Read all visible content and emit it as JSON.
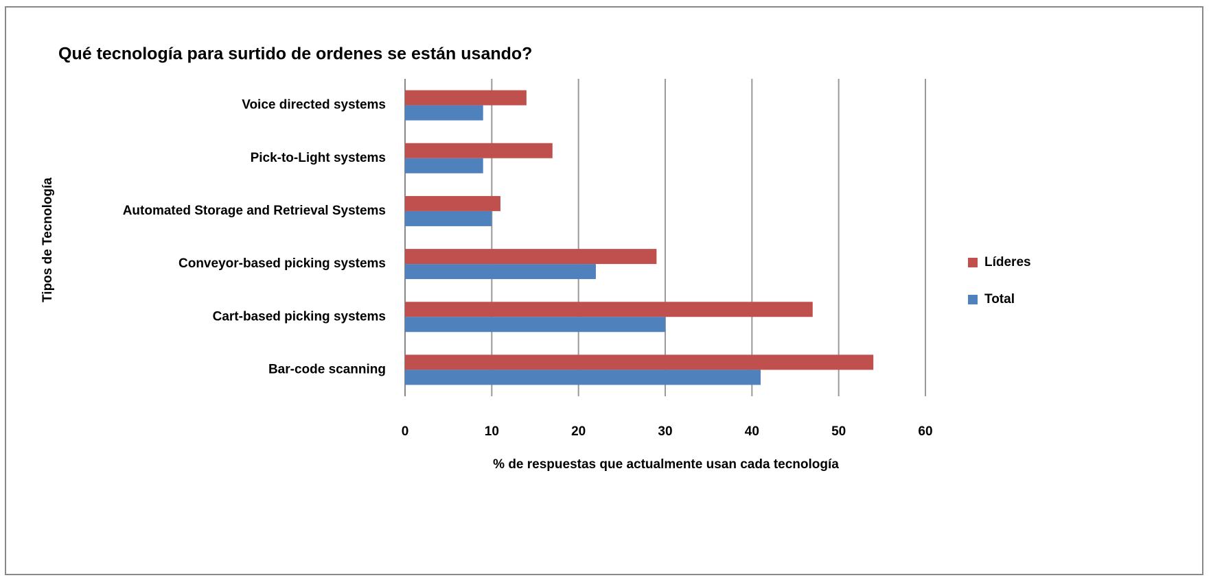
{
  "chart_data": {
    "type": "hbar",
    "title": "Qué tecnología para surtido de ordenes se están usando?",
    "x_label": "% de respuestas que actualmente usan cada tecnología",
    "y_label": "Tipos de Tecnología",
    "categories": [
      "Bar-code scanning",
      "Cart-based picking systems",
      "Conveyor-based picking systems",
      "Automated Storage and Retrieval Systems",
      "Pick-to-Light systems",
      "Voice directed systems"
    ],
    "series": [
      {
        "name": "Líderes",
        "color": "#c0504d",
        "values": [
          54,
          47,
          29,
          11,
          17,
          14
        ]
      },
      {
        "name": "Total",
        "color": "#4f81bd",
        "values": [
          41,
          30,
          22,
          10,
          9,
          9
        ]
      }
    ],
    "xlim": [
      0,
      60
    ],
    "xticks": [
      0,
      10,
      20,
      30,
      40,
      50,
      60
    ],
    "grid": true,
    "legend": "right"
  }
}
